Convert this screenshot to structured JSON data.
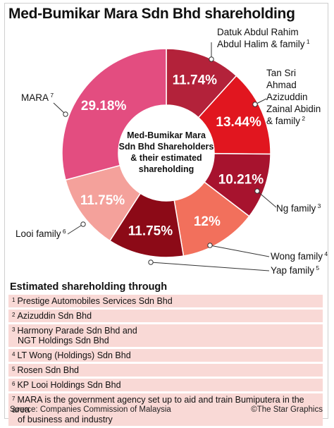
{
  "title": "Med-Bumikar Mara Sdn Bhd shareholding",
  "chart_data": {
    "type": "pie",
    "center_label": [
      "Med-Bumikar Mara",
      "Sdn Bhd Shareholders",
      "& their estimated",
      "shareholding"
    ],
    "slices": [
      {
        "name": "Datuk Abdul Rahim Abdul Halim & family",
        "value": 11.74,
        "label": "11.74%",
        "sup": "1",
        "color": "#b3223a"
      },
      {
        "name": "Tan Sri Ahmad Azizuddin Zainal Abidin & family",
        "value": 13.44,
        "label": "13.44%",
        "sup": "2",
        "color": "#e1161f"
      },
      {
        "name": "Ng family",
        "value": 10.21,
        "label": "10.21%",
        "sup": "3",
        "color": "#a7132e"
      },
      {
        "name": "Wong family",
        "value": 12,
        "label": "12%",
        "sup": "4",
        "color": "#f2705c"
      },
      {
        "name": "Yap family",
        "value": 11.75,
        "label": "11.75%",
        "sup": "5",
        "color": "#8c0a17"
      },
      {
        "name": "Looi family",
        "value": 11.75,
        "label": "11.75%",
        "sup": "6",
        "color": "#f4a19b"
      },
      {
        "name": "MARA",
        "value": 29.18,
        "label": "29.18%",
        "sup": "7",
        "color": "#e34d80"
      }
    ]
  },
  "callouts": [
    {
      "lines": [
        "Datuk Abdul Rahim",
        "Abdul Halim & family"
      ],
      "sup": "1"
    },
    {
      "lines": [
        "Tan Sri",
        "Ahmad",
        "Azizuddin",
        "Zainal Abidin",
        "& family"
      ],
      "sup": "2"
    },
    {
      "lines": [
        "Ng family"
      ],
      "sup": "3"
    },
    {
      "lines": [
        "Wong family"
      ],
      "sup": "4"
    },
    {
      "lines": [
        "Yap family"
      ],
      "sup": "5"
    },
    {
      "lines": [
        "Looi family"
      ],
      "sup": "6"
    },
    {
      "lines": [
        "MARA"
      ],
      "sup": "7"
    }
  ],
  "notes_title": "Estimated shareholding through",
  "notes": [
    {
      "sup": "1",
      "text": "Prestige Automobiles Services Sdn Bhd"
    },
    {
      "sup": "2",
      "text": "Azizuddin Sdn Bhd"
    },
    {
      "sup": "3",
      "text": "Harmony Parade Sdn Bhd and\nNGT Holdings Sdn Bhd"
    },
    {
      "sup": "4",
      "text": "LT Wong (Holdings) Sdn Bhd"
    },
    {
      "sup": "5",
      "text": "Rosen Sdn Bhd"
    },
    {
      "sup": "6",
      "text": "KP Looi Holdings Sdn Bhd"
    },
    {
      "sup": "7",
      "text": "MARA is the government agency set up to aid and train Bumiputera in the area\nof business and industry"
    }
  ],
  "source": "Source: Companies Commission of Malaysia",
  "credit": "©The Star Graphics"
}
